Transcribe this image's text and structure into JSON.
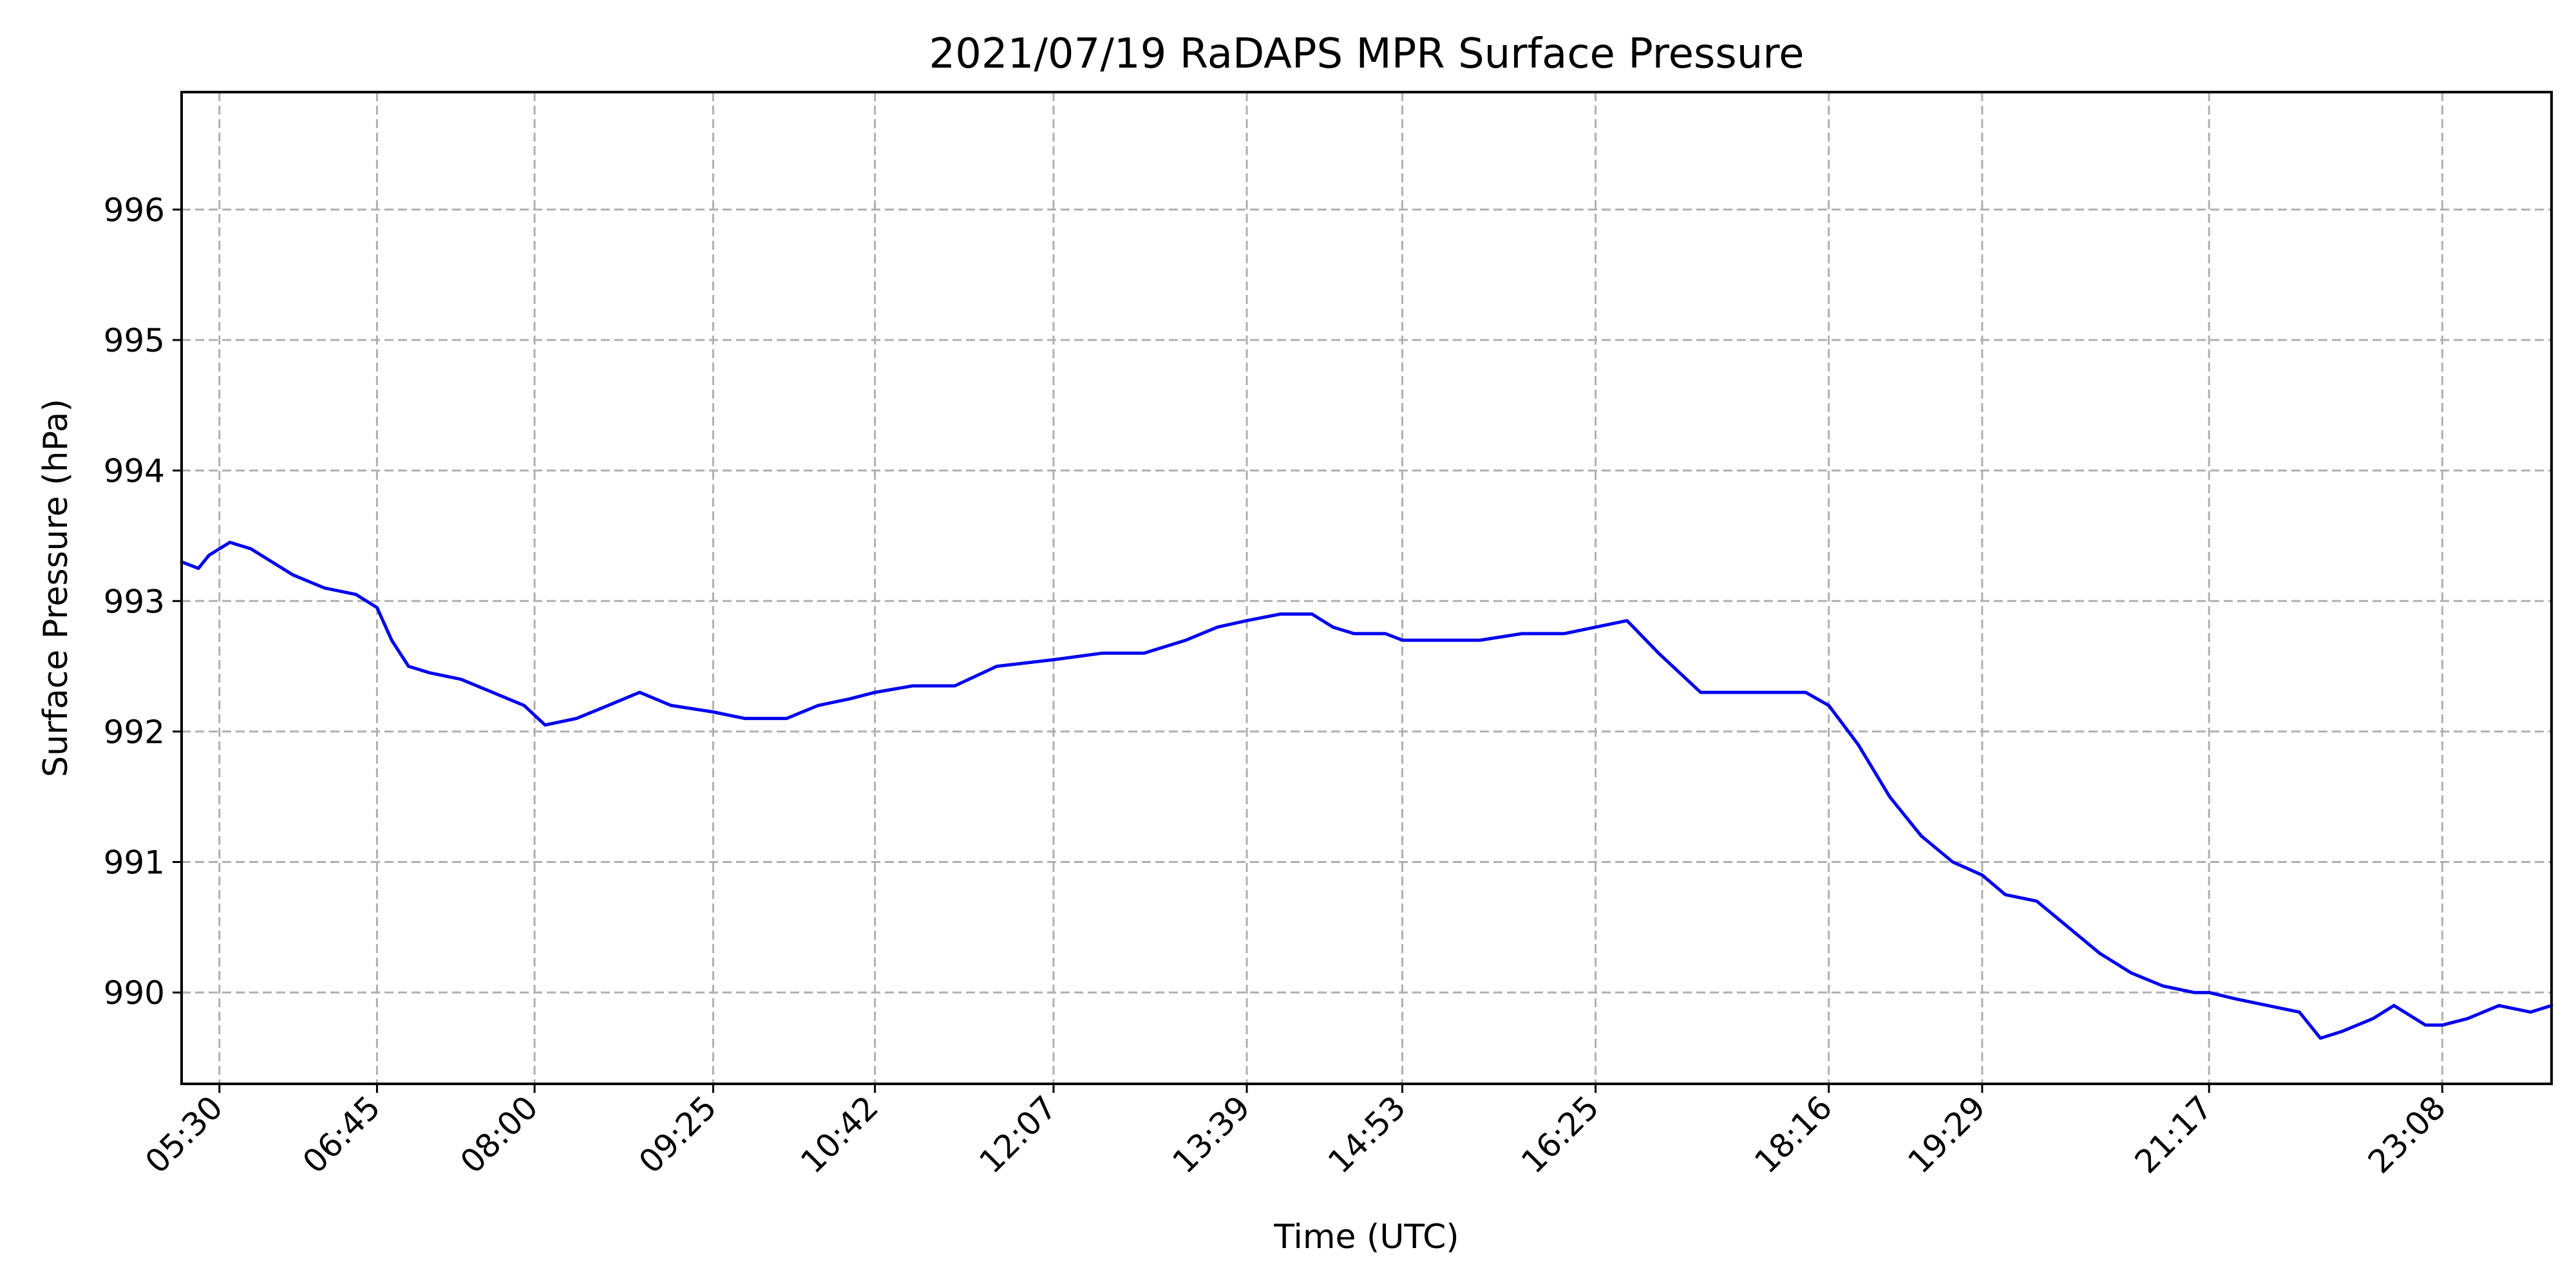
{
  "chart_data": {
    "type": "line",
    "title": "2021/07/19 RaDAPS MPR Surface Pressure",
    "xlabel": "Time (UTC)",
    "ylabel": "Surface Pressure (hPa)",
    "xlim": [
      "05:12",
      "24:00"
    ],
    "ylim": [
      989.3,
      996.9
    ],
    "grid": true,
    "line_color": "#0000ee",
    "grid_color": "#b0b0b0",
    "x_ticks": [
      "05:30",
      "06:45",
      "08:00",
      "09:25",
      "10:42",
      "12:07",
      "13:39",
      "14:53",
      "16:25",
      "18:16",
      "19:29",
      "21:17",
      "23:08"
    ],
    "y_ticks": [
      990,
      991,
      992,
      993,
      994,
      995,
      996
    ],
    "series": [
      {
        "x": [
          "05:12",
          "05:20",
          "05:25",
          "05:35",
          "05:45",
          "05:55",
          "06:05",
          "06:20",
          "06:35",
          "06:45",
          "06:52",
          "07:00",
          "07:10",
          "07:25",
          "07:40",
          "07:55",
          "08:05",
          "08:20",
          "08:35",
          "08:50",
          "09:05",
          "09:25",
          "09:40",
          "10:00",
          "10:15",
          "10:30",
          "10:42",
          "11:00",
          "11:20",
          "11:40",
          "12:07",
          "12:30",
          "12:50",
          "13:10",
          "13:25",
          "13:39",
          "13:55",
          "14:10",
          "14:20",
          "14:30",
          "14:45",
          "14:53",
          "15:10",
          "15:30",
          "15:50",
          "16:10",
          "16:25",
          "16:40",
          "16:55",
          "17:05",
          "17:15",
          "17:30",
          "17:50",
          "18:05",
          "18:16",
          "18:30",
          "18:45",
          "19:00",
          "19:15",
          "19:29",
          "19:40",
          "19:55",
          "20:10",
          "20:25",
          "20:40",
          "20:55",
          "21:10",
          "21:17",
          "21:30",
          "21:45",
          "22:00",
          "22:10",
          "22:20",
          "22:35",
          "22:45",
          "23:00",
          "23:08",
          "23:20",
          "23:35",
          "23:50",
          "24:00"
        ],
        "values": [
          993.3,
          993.25,
          993.35,
          993.45,
          993.4,
          993.3,
          993.2,
          993.1,
          993.05,
          992.95,
          992.7,
          992.5,
          992.45,
          992.4,
          992.3,
          992.2,
          992.05,
          992.1,
          992.2,
          992.3,
          992.2,
          992.15,
          992.1,
          992.1,
          992.2,
          992.25,
          992.3,
          992.35,
          992.35,
          992.5,
          992.55,
          992.6,
          992.6,
          992.7,
          992.8,
          992.85,
          992.9,
          992.9,
          992.8,
          992.75,
          992.75,
          992.7,
          992.7,
          992.7,
          992.75,
          992.75,
          992.8,
          992.85,
          992.6,
          992.45,
          992.3,
          992.3,
          992.3,
          992.3,
          992.2,
          991.9,
          991.5,
          991.2,
          991.0,
          990.9,
          990.75,
          990.7,
          990.5,
          990.3,
          990.15,
          990.05,
          990.0,
          990.0,
          989.95,
          989.9,
          989.85,
          989.65,
          989.7,
          989.8,
          989.9,
          989.75,
          989.75,
          989.8,
          989.9,
          989.85,
          989.9
        ]
      }
    ]
  }
}
